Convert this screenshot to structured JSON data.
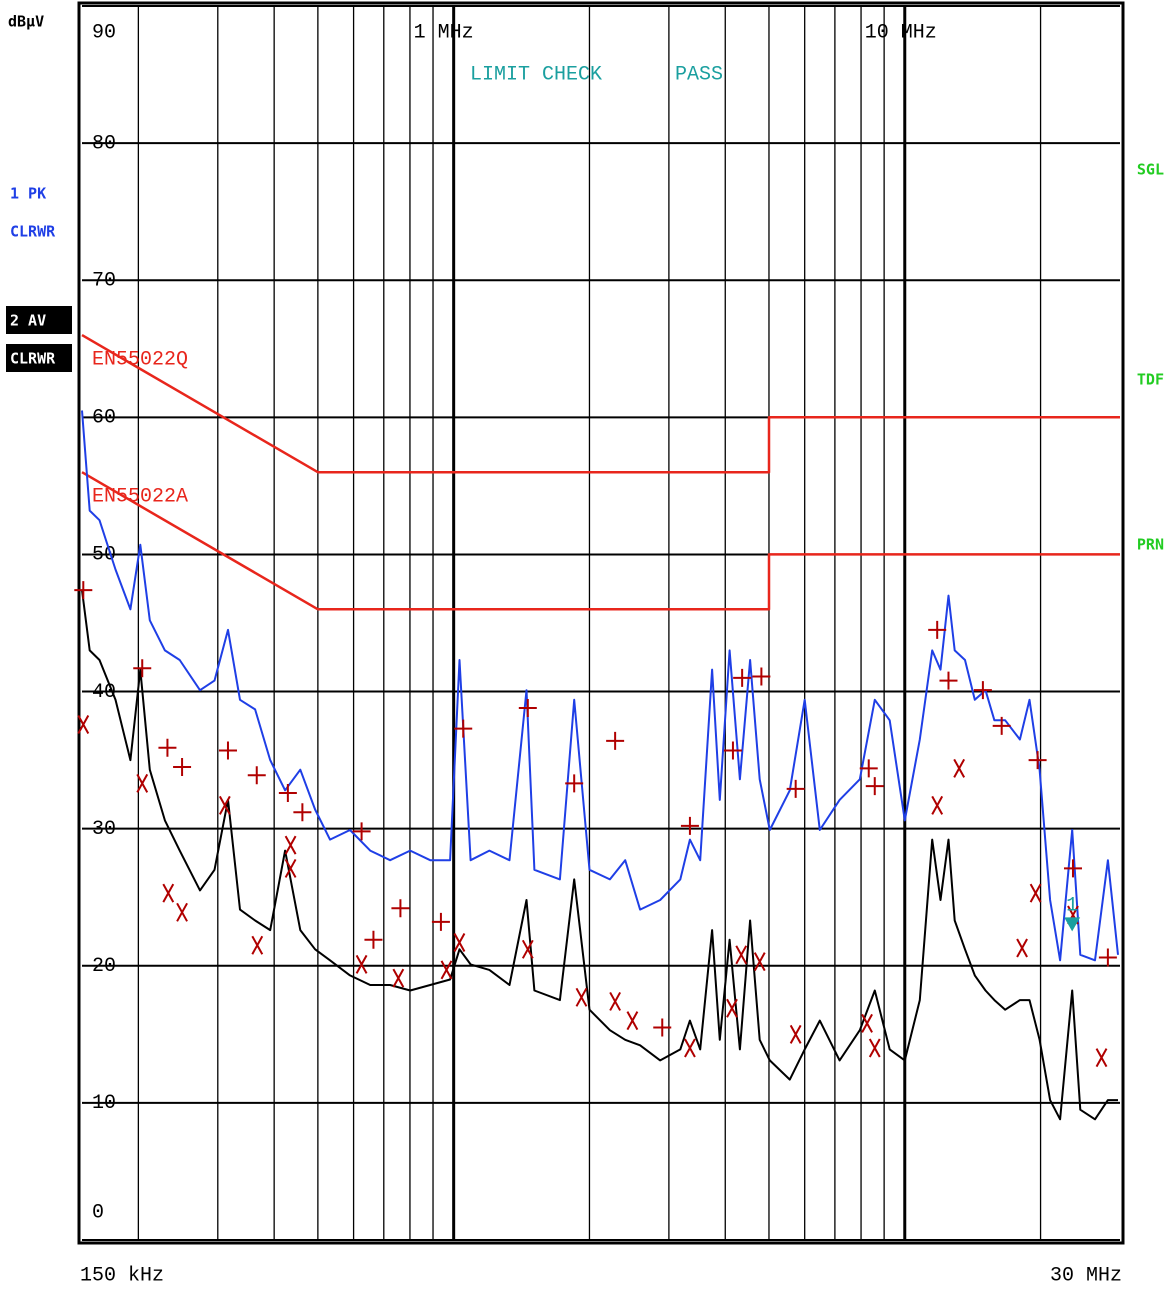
{
  "chart_data": {
    "type": "line",
    "y_unit": "dBµV",
    "xscale": "log",
    "xlim": [
      0.15,
      30
    ],
    "ylim": [
      0,
      90
    ],
    "yticks": [
      0,
      10,
      20,
      30,
      40,
      50,
      60,
      70,
      80,
      90
    ],
    "xticks": [
      {
        "value": 0.15,
        "label": "150 kHz"
      },
      {
        "value": 1,
        "label": "1 MHz"
      },
      {
        "value": 10,
        "label": "10 MHz"
      },
      {
        "value": 30,
        "label": "30 MHz"
      }
    ],
    "xgrid": [
      0.2,
      0.3,
      0.4,
      0.5,
      0.6,
      0.7,
      0.8,
      0.9,
      2,
      3,
      4,
      5,
      6,
      7,
      8,
      9,
      20
    ],
    "grid": true,
    "status": {
      "label": "LIMIT CHECK",
      "result": "PASS",
      "color": "#1a9f9f"
    },
    "side_labels": {
      "color": "#22cc22",
      "items": [
        "SGL",
        "TDF",
        "PRN"
      ]
    },
    "x": [
      0.15,
      0.156,
      0.164,
      0.178,
      0.192,
      0.202,
      0.212,
      0.229,
      0.247,
      0.274,
      0.295,
      0.316,
      0.336,
      0.363,
      0.392,
      0.423,
      0.457,
      0.493,
      0.532,
      0.589,
      0.653,
      0.723,
      0.801,
      0.887,
      0.982,
      1.03,
      1.09,
      1.2,
      1.33,
      1.45,
      1.51,
      1.72,
      1.85,
      2.0,
      2.22,
      2.4,
      2.59,
      2.87,
      3.18,
      3.34,
      3.52,
      3.74,
      3.89,
      4.09,
      4.31,
      4.54,
      4.77,
      5.02,
      5.56,
      6.0,
      6.48,
      7.17,
      7.95,
      8.58,
      9.26,
      10.0,
      10.8,
      11.5,
      12.0,
      12.5,
      12.9,
      13.6,
      14.3,
      15.1,
      15.8,
      16.7,
      18.0,
      18.9,
      19.9,
      21.0,
      22.1,
      23.5,
      24.5,
      26.4,
      28.2,
      29.7
    ],
    "series": [
      {
        "name": "1 PK",
        "mode": "CLRWR",
        "color": "#1f3fe6",
        "label_bg": null,
        "values": [
          60.5,
          53.2,
          52.5,
          48.9,
          46.0,
          50.7,
          45.2,
          43.0,
          42.3,
          40.1,
          40.8,
          44.5,
          39.4,
          38.7,
          35.0,
          32.8,
          34.3,
          31.4,
          29.2,
          29.9,
          28.4,
          27.7,
          28.4,
          27.7,
          27.7,
          42.3,
          27.7,
          28.4,
          27.7,
          40.1,
          27.0,
          26.3,
          39.4,
          27.0,
          26.3,
          27.7,
          24.1,
          24.8,
          26.3,
          29.2,
          27.7,
          41.6,
          32.1,
          43.0,
          33.6,
          42.3,
          33.6,
          29.9,
          32.8,
          39.4,
          29.9,
          32.1,
          33.6,
          39.4,
          37.9,
          30.6,
          36.5,
          43.0,
          41.6,
          47.0,
          43.0,
          42.3,
          39.4,
          40.1,
          37.9,
          37.9,
          36.5,
          39.4,
          34.3,
          24.8,
          20.4,
          29.9,
          20.8,
          20.4,
          27.7,
          20.8
        ]
      },
      {
        "name": "2 AV",
        "mode": "CLRWR",
        "color": "#000000",
        "label_bg": "#000000",
        "values": [
          47.4,
          43.0,
          42.3,
          39.4,
          35.0,
          41.6,
          34.3,
          30.6,
          28.4,
          25.5,
          27.0,
          32.1,
          24.1,
          23.3,
          22.6,
          28.4,
          22.6,
          21.2,
          20.4,
          19.3,
          18.6,
          18.6,
          18.2,
          18.6,
          19.0,
          21.2,
          20.1,
          19.7,
          18.6,
          24.8,
          18.2,
          17.5,
          26.3,
          16.8,
          15.3,
          14.6,
          14.2,
          13.1,
          13.9,
          16.0,
          13.9,
          22.6,
          14.6,
          21.9,
          13.9,
          23.3,
          14.6,
          13.1,
          11.7,
          13.9,
          16.0,
          13.1,
          15.3,
          18.2,
          13.9,
          13.1,
          17.5,
          29.2,
          24.8,
          29.2,
          23.3,
          21.2,
          19.3,
          18.2,
          17.5,
          16.8,
          17.5,
          17.5,
          14.6,
          10.2,
          8.8,
          18.2,
          9.5,
          8.8,
          10.2,
          10.2
        ]
      }
    ],
    "limit_lines": [
      {
        "name": "EN55022Q",
        "color": "#e8261c",
        "x": [
          0.15,
          0.5,
          5,
          5,
          30
        ],
        "values": [
          66,
          56,
          56,
          60,
          60
        ]
      },
      {
        "name": "EN55022A",
        "color": "#e8261c",
        "x": [
          0.15,
          0.5,
          5,
          5,
          30
        ],
        "values": [
          56,
          46,
          46,
          50,
          50
        ]
      }
    ],
    "final_peak": {
      "marker": "plus",
      "color": "#b00000",
      "x": [
        0.151,
        0.204,
        0.232,
        0.25,
        0.316,
        0.366,
        0.429,
        0.462,
        0.625,
        0.664,
        0.762,
        0.937,
        1.05,
        1.46,
        1.85,
        2.28,
        2.9,
        3.34,
        4.16,
        4.36,
        4.81,
        5.73,
        8.32,
        8.58,
        11.8,
        12.5,
        14.9,
        16.4,
        19.7,
        23.6,
        28.2
      ],
      "values": [
        47.4,
        41.7,
        35.9,
        34.5,
        35.7,
        33.9,
        32.6,
        31.2,
        29.8,
        21.9,
        24.2,
        23.2,
        37.3,
        38.8,
        33.3,
        36.4,
        15.5,
        30.2,
        35.7,
        41.0,
        41.1,
        32.9,
        34.4,
        33.1,
        44.5,
        40.8,
        40.1,
        37.5,
        35.0,
        27.1,
        20.6
      ]
    },
    "final_avg": {
      "marker": "x",
      "color": "#b00000",
      "x": [
        0.151,
        0.204,
        0.233,
        0.25,
        0.311,
        0.367,
        0.435,
        0.435,
        0.625,
        0.754,
        0.964,
        1.03,
        1.46,
        1.92,
        2.28,
        2.49,
        3.34,
        4.14,
        4.34,
        4.77,
        5.73,
        8.25,
        8.58,
        11.8,
        13.2,
        18.2,
        19.5,
        23.6,
        27.3
      ],
      "values": [
        37.6,
        33.3,
        25.3,
        23.9,
        31.7,
        21.5,
        28.8,
        27.1,
        20.1,
        19.1,
        19.7,
        21.7,
        21.2,
        17.7,
        17.4,
        16.0,
        14.0,
        16.9,
        20.8,
        20.3,
        15.0,
        15.8,
        14.0,
        31.7,
        34.4,
        21.3,
        25.3,
        23.7,
        13.3
      ]
    },
    "marker": {
      "label": "1",
      "x": 23.5,
      "value": 22.8,
      "color": "#1a9f9f"
    }
  }
}
